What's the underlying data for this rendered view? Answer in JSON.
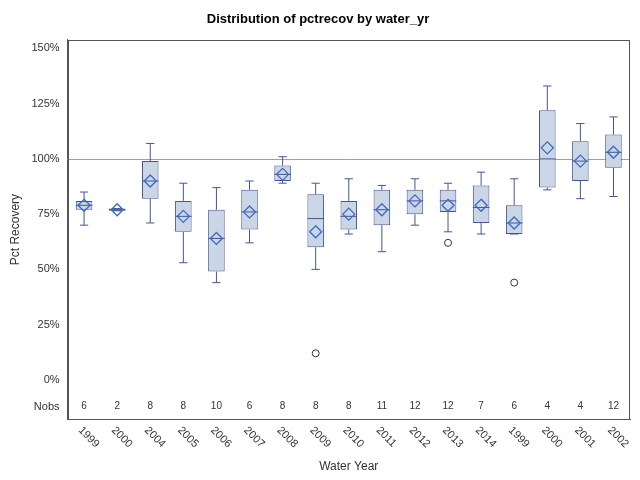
{
  "chart_data": {
    "type": "boxplot",
    "title": "Distribution of pctrecov by water_yr",
    "x_label": "Water Year",
    "y_label": "Pct Recovery",
    "categories": [
      "1999",
      "2000",
      "2004",
      "2005",
      "2006",
      "2007",
      "2008",
      "2009",
      "2010",
      "2011",
      "2012",
      "2013",
      "2014",
      "1999",
      "2000",
      "2001",
      "2002"
    ],
    "min": [
      70,
      76.5,
      71,
      53,
      44,
      62,
      89,
      50,
      66,
      58,
      70,
      67,
      66,
      66,
      86,
      82,
      83
    ],
    "q1": [
      77,
      76.5,
      82,
      67,
      49,
      68,
      90,
      60,
      68,
      70,
      75,
      76,
      71,
      66,
      87,
      90,
      96
    ],
    "median": [
      79,
      77,
      90,
      74,
      64,
      76,
      93,
      73,
      74,
      77,
      81,
      81,
      78,
      71,
      100,
      99,
      103
    ],
    "q3": [
      81,
      77.5,
      99,
      81,
      77,
      86,
      97,
      84,
      81,
      86,
      86,
      86,
      88,
      79,
      122,
      108,
      111
    ],
    "max": [
      85,
      77.5,
      107,
      89,
      87,
      90,
      101,
      89,
      91,
      88,
      91,
      89,
      94,
      91,
      133,
      116,
      119
    ],
    "mean": [
      79,
      77,
      90,
      74,
      64,
      76,
      93,
      67,
      75,
      77,
      81,
      79,
      79,
      71,
      105,
      99,
      103
    ],
    "outliers": [
      [],
      [],
      [],
      [],
      [],
      [],
      [],
      [
        12
      ],
      [],
      [],
      [],
      [
        62
      ],
      [],
      [
        44
      ],
      [],
      [],
      []
    ],
    "nobs_label": "Nobs",
    "nobs": [
      6,
      2,
      8,
      8,
      10,
      6,
      8,
      8,
      8,
      11,
      12,
      12,
      7,
      6,
      4,
      4,
      12
    ],
    "reference_line": 100,
    "color": "#cad5e5",
    "ylim": [
      -18,
      154
    ],
    "yticks": [
      {
        "value": 0,
        "label": "0%"
      },
      {
        "value": 25,
        "label": "25%"
      },
      {
        "value": 50,
        "label": "50%"
      },
      {
        "value": 75,
        "label": "75%"
      },
      {
        "value": 100,
        "label": "100%"
      },
      {
        "value": 125,
        "label": "125%"
      },
      {
        "value": 150,
        "label": "150%"
      }
    ],
    "grid": false
  }
}
